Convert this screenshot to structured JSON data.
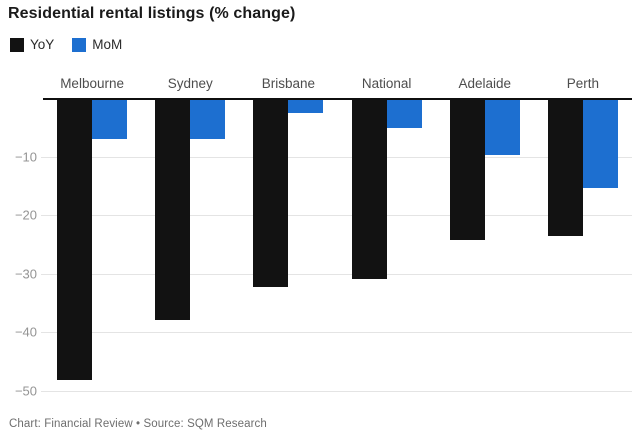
{
  "footer": {
    "text": "Chart: Financial Review • Source: SQM Research"
  },
  "colors": {
    "yoy_bar": "#121212",
    "mom_bar": "#1d6fd0",
    "gridline": "#e4e4e4",
    "axis_line": "#0f0f0f",
    "title_text": "#1a1a1a",
    "category_text": "#4d4d4d",
    "tick_text": "#949494",
    "footer_text": "#6e6e6e"
  },
  "chart_data": {
    "type": "bar",
    "title": "Residential rental listings (% change)",
    "categories": [
      "Melbourne",
      "Sydney",
      "Brisbane",
      "National",
      "Adelaide",
      "Perth"
    ],
    "series": [
      {
        "name": "YoY",
        "color": "#121212",
        "values": [
          -48.2,
          -37.8,
          -32.2,
          -30.9,
          -24.2,
          -23.6
        ]
      },
      {
        "name": "MoM",
        "color": "#1d6fd0",
        "values": [
          -7.0,
          -7.0,
          -2.5,
          -5.2,
          -9.8,
          -15.4
        ]
      }
    ],
    "xlabel": "",
    "ylabel": "",
    "ylim": [
      -50,
      0
    ],
    "yticks": [
      -10,
      -20,
      -30,
      -40,
      -50
    ],
    "ytick_labels": [
      "−10",
      "−20",
      "−30",
      "−40",
      "−50"
    ],
    "grid": true,
    "legend_position": "top-left",
    "orientation": "vertical-negative"
  }
}
